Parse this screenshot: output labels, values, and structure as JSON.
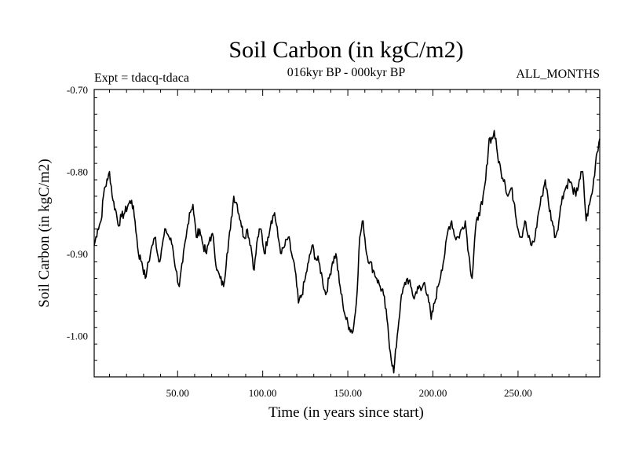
{
  "chart_data": {
    "type": "line",
    "title": "Soil Carbon (in kgC/m2)",
    "subtitle": "016kyr BP - 000kyr BP",
    "experiment": "Expt = tdacq-tdaca",
    "season": "ALL_MONTHS",
    "xlabel": "Time (in years since start)",
    "ylabel": "Soil Carbon (in kgC/m2)",
    "xlim": [
      1,
      298
    ],
    "ylim": [
      -1.05,
      -0.7
    ],
    "x_major_ticks": [
      50,
      100,
      150,
      200,
      250
    ],
    "x_tick_labels": [
      "50.00",
      "100.00",
      "150.00",
      "200.00",
      "250.00"
    ],
    "y_major_ticks": [
      -0.7,
      -0.8,
      -0.9,
      -1.0
    ],
    "y_tick_labels": [
      "-0.70",
      "-0.80",
      "-0.90",
      "-1.00"
    ],
    "series": [
      {
        "name": "Soil Carbon",
        "x": [
          1,
          3,
          5,
          7,
          9,
          10,
          12,
          14,
          15,
          17,
          19,
          21,
          23,
          25,
          27,
          29,
          31,
          32,
          34,
          35,
          37,
          39,
          41,
          43,
          45,
          47,
          49,
          51,
          53,
          55,
          57,
          59,
          61,
          63,
          65,
          67,
          69,
          71,
          73,
          75,
          77,
          79,
          81,
          83,
          85,
          87,
          89,
          91,
          93,
          95,
          97,
          99,
          101,
          103,
          105,
          107,
          109,
          111,
          113,
          115,
          117,
          119,
          121,
          123,
          125,
          127,
          129,
          131,
          133,
          135,
          137,
          139,
          141,
          143,
          145,
          147,
          149,
          151,
          153,
          155,
          157,
          159,
          161,
          163,
          165,
          167,
          169,
          171,
          173,
          175,
          177,
          179,
          181,
          183,
          185,
          187,
          189,
          191,
          193,
          195,
          197,
          199,
          201,
          203,
          205,
          207,
          209,
          211,
          213,
          215,
          217,
          219,
          221,
          223,
          225,
          227,
          229,
          231,
          233,
          235,
          236,
          238,
          240,
          242,
          244,
          246,
          248,
          250,
          252,
          254,
          256,
          258,
          260,
          262,
          264,
          266,
          268,
          270,
          272,
          274,
          276,
          278,
          280,
          282,
          284,
          286,
          288,
          290,
          292,
          294,
          296,
          298
        ],
        "values": [
          -0.89,
          -0.87,
          -0.86,
          -0.82,
          -0.81,
          -0.8,
          -0.835,
          -0.85,
          -0.865,
          -0.855,
          -0.85,
          -0.84,
          -0.835,
          -0.86,
          -0.9,
          -0.91,
          -0.93,
          -0.92,
          -0.9,
          -0.89,
          -0.88,
          -0.91,
          -0.89,
          -0.87,
          -0.88,
          -0.89,
          -0.92,
          -0.94,
          -0.91,
          -0.88,
          -0.85,
          -0.84,
          -0.88,
          -0.87,
          -0.89,
          -0.9,
          -0.88,
          -0.88,
          -0.92,
          -0.93,
          -0.94,
          -0.9,
          -0.87,
          -0.83,
          -0.84,
          -0.86,
          -0.88,
          -0.87,
          -0.89,
          -0.92,
          -0.88,
          -0.87,
          -0.9,
          -0.88,
          -0.86,
          -0.85,
          -0.88,
          -0.9,
          -0.89,
          -0.88,
          -0.9,
          -0.92,
          -0.96,
          -0.95,
          -0.93,
          -0.91,
          -0.89,
          -0.905,
          -0.91,
          -0.93,
          -0.95,
          -0.93,
          -0.91,
          -0.9,
          -0.935,
          -0.96,
          -0.98,
          -0.99,
          -0.995,
          -0.96,
          -0.88,
          -0.86,
          -0.9,
          -0.91,
          -0.92,
          -0.93,
          -0.94,
          -0.95,
          -0.98,
          -1.02,
          -1.045,
          -1.0,
          -0.96,
          -0.94,
          -0.93,
          -0.94,
          -0.955,
          -0.94,
          -0.945,
          -0.935,
          -0.95,
          -0.98,
          -0.96,
          -0.94,
          -0.92,
          -0.9,
          -0.87,
          -0.86,
          -0.88,
          -0.88,
          -0.87,
          -0.86,
          -0.9,
          -0.93,
          -0.87,
          -0.85,
          -0.84,
          -0.81,
          -0.76,
          -0.76,
          -0.75,
          -0.78,
          -0.8,
          -0.81,
          -0.83,
          -0.82,
          -0.84,
          -0.87,
          -0.88,
          -0.86,
          -0.88,
          -0.89,
          -0.88,
          -0.85,
          -0.83,
          -0.81,
          -0.84,
          -0.86,
          -0.88,
          -0.86,
          -0.83,
          -0.82,
          -0.81,
          -0.82,
          -0.83,
          -0.81,
          -0.8,
          -0.86,
          -0.84,
          -0.82,
          -0.78,
          -0.76
        ]
      }
    ]
  }
}
